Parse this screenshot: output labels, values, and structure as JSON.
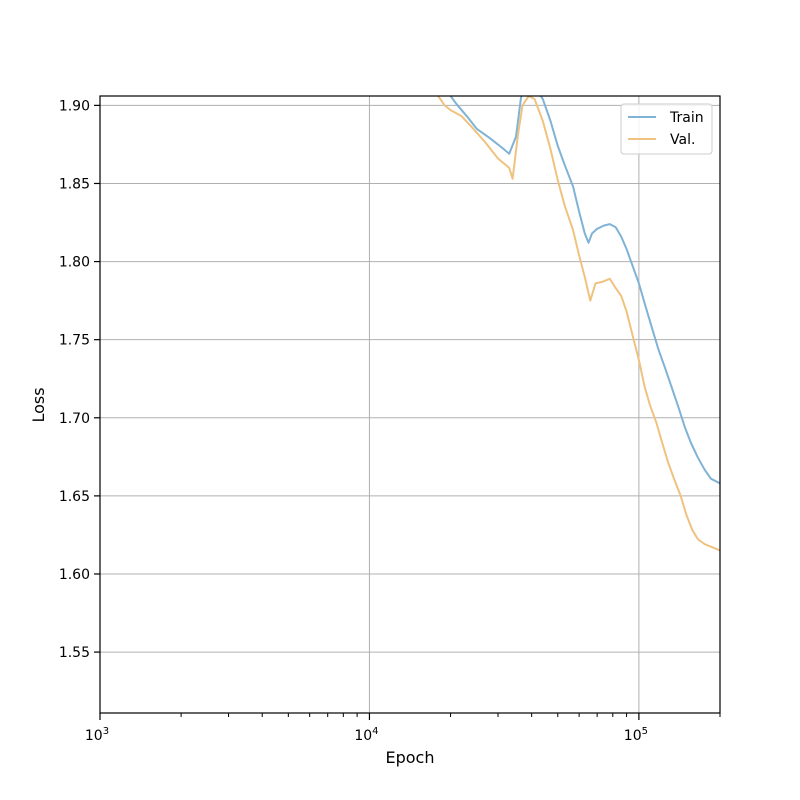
{
  "chart_data": {
    "type": "line",
    "title": "",
    "xlabel": "Epoch",
    "ylabel": "Loss",
    "xscale": "log",
    "xlim": [
      1000,
      200000
    ],
    "ylim": [
      1.511,
      1.906
    ],
    "grid": true,
    "legend_position": "top-right",
    "x_ticks": [
      {
        "value": 1000,
        "base": "10",
        "exp": "3"
      },
      {
        "value": 10000,
        "base": "10",
        "exp": "4"
      },
      {
        "value": 100000,
        "base": "10",
        "exp": "5"
      }
    ],
    "y_ticks": [
      {
        "value": 1.55,
        "label": "1.55"
      },
      {
        "value": 1.6,
        "label": "1.60"
      },
      {
        "value": 1.65,
        "label": "1.65"
      },
      {
        "value": 1.7,
        "label": "1.70"
      },
      {
        "value": 1.75,
        "label": "1.75"
      },
      {
        "value": 1.8,
        "label": "1.80"
      },
      {
        "value": 1.85,
        "label": "1.85"
      },
      {
        "value": 1.9,
        "label": "1.90"
      }
    ],
    "series": [
      {
        "name": "Train",
        "color": "#7fb3d5",
        "points": [
          [
            19000,
            1.915
          ],
          [
            20000,
            1.906
          ],
          [
            21000,
            1.901
          ],
          [
            23000,
            1.893
          ],
          [
            25000,
            1.885
          ],
          [
            28000,
            1.879
          ],
          [
            31000,
            1.873
          ],
          [
            33000,
            1.869
          ],
          [
            35000,
            1.88
          ],
          [
            36500,
            1.905
          ],
          [
            38000,
            1.915
          ],
          [
            41000,
            1.912
          ],
          [
            44000,
            1.904
          ],
          [
            47000,
            1.89
          ],
          [
            50000,
            1.874
          ],
          [
            53000,
            1.862
          ],
          [
            57000,
            1.848
          ],
          [
            60000,
            1.832
          ],
          [
            63000,
            1.818
          ],
          [
            65000,
            1.812
          ],
          [
            67000,
            1.818
          ],
          [
            70000,
            1.821
          ],
          [
            74000,
            1.823
          ],
          [
            78000,
            1.824
          ],
          [
            82000,
            1.822
          ],
          [
            86000,
            1.816
          ],
          [
            90000,
            1.808
          ],
          [
            94000,
            1.799
          ],
          [
            100000,
            1.786
          ],
          [
            106000,
            1.771
          ],
          [
            112000,
            1.757
          ],
          [
            118000,
            1.744
          ],
          [
            125000,
            1.732
          ],
          [
            132000,
            1.72
          ],
          [
            140000,
            1.707
          ],
          [
            148000,
            1.694
          ],
          [
            156000,
            1.684
          ],
          [
            165000,
            1.675
          ],
          [
            175000,
            1.667
          ],
          [
            185000,
            1.661
          ],
          [
            200000,
            1.658
          ]
        ]
      },
      {
        "name": "Val.",
        "color": "#f0c27f",
        "points": [
          [
            18000,
            1.906
          ],
          [
            19000,
            1.9
          ],
          [
            20000,
            1.897
          ],
          [
            22000,
            1.893
          ],
          [
            24000,
            1.886
          ],
          [
            27000,
            1.876
          ],
          [
            30000,
            1.866
          ],
          [
            33000,
            1.86
          ],
          [
            34000,
            1.853
          ],
          [
            35500,
            1.88
          ],
          [
            37000,
            1.9
          ],
          [
            39000,
            1.906
          ],
          [
            41000,
            1.904
          ],
          [
            44000,
            1.89
          ],
          [
            47000,
            1.872
          ],
          [
            50000,
            1.852
          ],
          [
            53000,
            1.836
          ],
          [
            57000,
            1.82
          ],
          [
            60000,
            1.804
          ],
          [
            63000,
            1.79
          ],
          [
            66000,
            1.775
          ],
          [
            69000,
            1.786
          ],
          [
            73000,
            1.787
          ],
          [
            78000,
            1.789
          ],
          [
            82000,
            1.783
          ],
          [
            86000,
            1.778
          ],
          [
            90000,
            1.768
          ],
          [
            95000,
            1.752
          ],
          [
            100000,
            1.737
          ],
          [
            105000,
            1.72
          ],
          [
            110000,
            1.708
          ],
          [
            116000,
            1.697
          ],
          [
            122000,
            1.684
          ],
          [
            128000,
            1.672
          ],
          [
            135000,
            1.661
          ],
          [
            143000,
            1.65
          ],
          [
            150000,
            1.638
          ],
          [
            158000,
            1.628
          ],
          [
            166000,
            1.622
          ],
          [
            176000,
            1.619
          ],
          [
            188000,
            1.617
          ],
          [
            200000,
            1.615
          ]
        ]
      }
    ]
  }
}
